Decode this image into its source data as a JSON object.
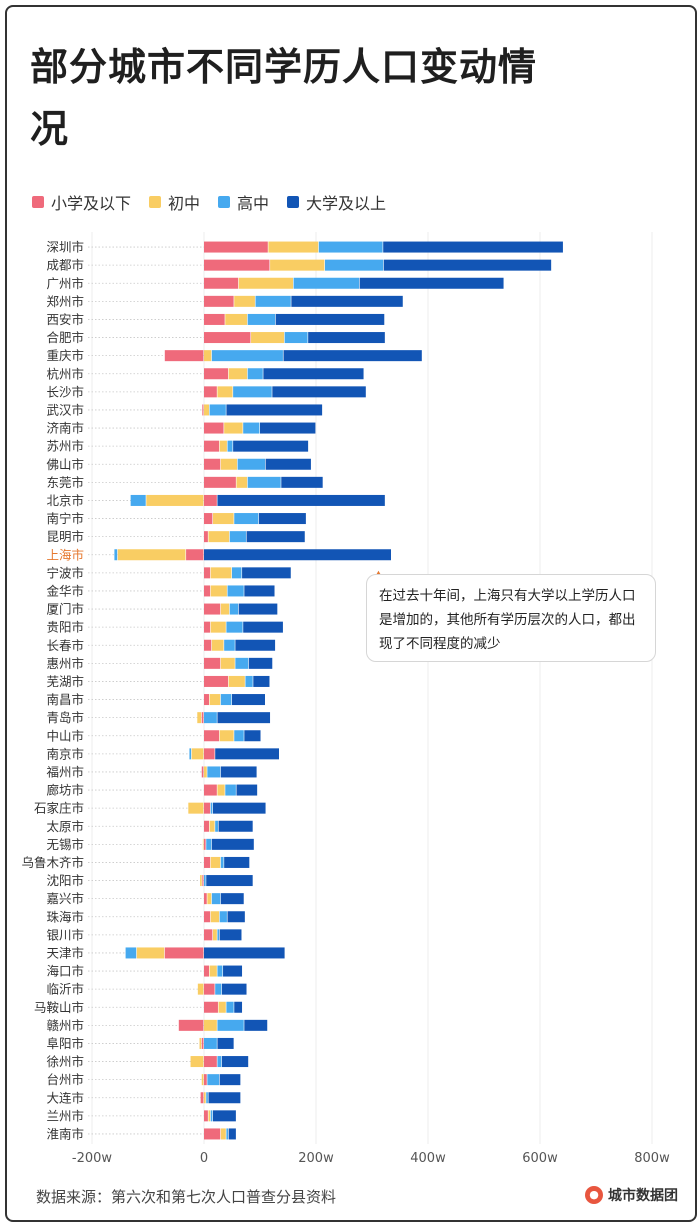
{
  "title": "部分城市不同学历人口变动情况",
  "colors": {
    "primary_school": "#ef6a7b",
    "junior_high": "#f9cd63",
    "senior_high": "#46a9ef",
    "college": "#1255b5",
    "highlight_label": "#e6782f"
  },
  "legend": [
    {
      "label": "小学及以下",
      "color": "#ef6a7b"
    },
    {
      "label": "初中",
      "color": "#f9cd63"
    },
    {
      "label": "高中",
      "color": "#46a9ef"
    },
    {
      "label": "大学及以上",
      "color": "#1255b5"
    }
  ],
  "annotation": {
    "text": "在过去十年间，上海只有大学以上学历人口是增加的，其他所有学历层次的人口，都出现了不同程度的减少",
    "target": "上海市"
  },
  "source": "数据来源：第六次和第七次人口普查分县资料",
  "brand": "城市数据团",
  "chart_data": {
    "type": "bar",
    "orientation": "horizontal",
    "stacked": true,
    "unit": "万人 (w)",
    "xlim": [
      -200,
      800
    ],
    "xticks": [
      -200,
      0,
      200,
      400,
      600,
      800
    ],
    "xtick_labels": [
      "-200w",
      "0",
      "200w",
      "400w",
      "600w",
      "800w"
    ],
    "highlight_category": "上海市",
    "categories": [
      "深圳市",
      "成都市",
      "广州市",
      "郑州市",
      "西安市",
      "合肥市",
      "重庆市",
      "杭州市",
      "长沙市",
      "武汉市",
      "济南市",
      "苏州市",
      "佛山市",
      "东莞市",
      "北京市",
      "南宁市",
      "昆明市",
      "上海市",
      "宁波市",
      "金华市",
      "厦门市",
      "贵阳市",
      "长春市",
      "惠州市",
      "芜湖市",
      "南昌市",
      "青岛市",
      "中山市",
      "南京市",
      "福州市",
      "廊坊市",
      "石家庄市",
      "太原市",
      "无锡市",
      "乌鲁木齐市",
      "沈阳市",
      "嘉兴市",
      "珠海市",
      "银川市",
      "天津市",
      "海口市",
      "临沂市",
      "马鞍山市",
      "赣州市",
      "阜阳市",
      "徐州市",
      "台州市",
      "大连市",
      "兰州市",
      "淮南市"
    ],
    "series": [
      {
        "name": "小学及以下",
        "color": "#ef6a7b",
        "values": [
          115,
          118,
          62,
          54,
          38,
          84,
          -70,
          44,
          24,
          -3,
          36,
          28,
          30,
          58,
          24,
          16,
          8,
          -32,
          12,
          12,
          30,
          12,
          14,
          30,
          44,
          10,
          -4,
          28,
          20,
          -4,
          24,
          12,
          10,
          4,
          12,
          -3,
          6,
          12,
          16,
          -70,
          10,
          20,
          26,
          -45,
          -4,
          24,
          6,
          -6,
          8,
          30
        ]
      },
      {
        "name": "初中",
        "color": "#f9cd63",
        "values": [
          90,
          98,
          98,
          38,
          40,
          60,
          14,
          34,
          28,
          10,
          34,
          14,
          30,
          20,
          -103,
          38,
          38,
          -122,
          38,
          30,
          16,
          28,
          22,
          26,
          30,
          20,
          -8,
          26,
          -22,
          6,
          14,
          -28,
          10,
          -2,
          18,
          -4,
          8,
          16,
          8,
          -50,
          14,
          -11,
          14,
          24,
          -4,
          -24,
          -4,
          4,
          4,
          10
        ]
      },
      {
        "name": "高中",
        "color": "#46a9ef",
        "values": [
          115,
          105,
          118,
          64,
          50,
          42,
          128,
          28,
          70,
          30,
          30,
          10,
          50,
          60,
          -28,
          44,
          30,
          -6,
          18,
          30,
          16,
          30,
          20,
          24,
          14,
          20,
          24,
          18,
          -4,
          24,
          20,
          4,
          6,
          10,
          6,
          4,
          16,
          14,
          4,
          -20,
          10,
          12,
          14,
          48,
          24,
          8,
          22,
          4,
          4,
          4
        ]
      },
      {
        "name": "大学及以上",
        "color": "#1255b5",
        "values": [
          322,
          300,
          258,
          200,
          195,
          138,
          248,
          180,
          168,
          172,
          100,
          135,
          82,
          75,
          300,
          85,
          105,
          335,
          88,
          55,
          70,
          72,
          72,
          43,
          30,
          60,
          95,
          30,
          115,
          65,
          38,
          95,
          62,
          76,
          46,
          84,
          42,
          32,
          40,
          145,
          35,
          45,
          15,
          42,
          30,
          48,
          38,
          58,
          42,
          14
        ]
      }
    ]
  }
}
